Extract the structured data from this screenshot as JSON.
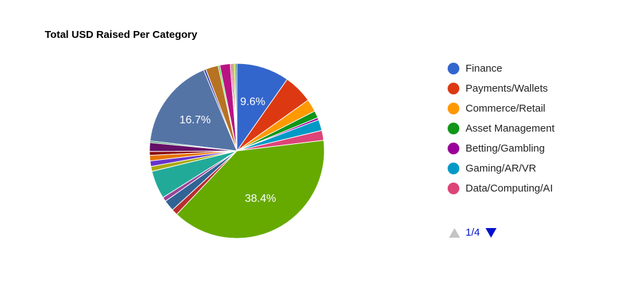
{
  "chart_data": {
    "type": "pie",
    "title": "Total USD Raised Per Category",
    "slices": [
      {
        "name": "Finance",
        "value": 9.6,
        "label": "9.6%",
        "color": "#3366cc"
      },
      {
        "name": "Payments/Wallets",
        "value": 5.3,
        "color": "#dc3912"
      },
      {
        "name": "Commerce/Retail",
        "value": 2.3,
        "color": "#ff9900"
      },
      {
        "name": "Asset Management",
        "value": 1.3,
        "color": "#109618"
      },
      {
        "name": "Betting/Gambling",
        "value": 0.4,
        "color": "#990099"
      },
      {
        "name": "Gaming/AR/VR",
        "value": 2.0,
        "color": "#0099c6"
      },
      {
        "name": "Data/Computing/AI",
        "value": 1.8,
        "color": "#dd4477"
      },
      {
        "name": "",
        "value": 38.4,
        "label": "38.4%",
        "color": "#66aa00"
      },
      {
        "name": "",
        "value": 1.1,
        "color": "#b82e2e"
      },
      {
        "name": "",
        "value": 2.0,
        "color": "#316395"
      },
      {
        "name": "",
        "value": 0.8,
        "color": "#994499"
      },
      {
        "name": "",
        "value": 5.1,
        "color": "#22aa99"
      },
      {
        "name": "",
        "value": 0.9,
        "color": "#aaaa11"
      },
      {
        "name": "",
        "value": 1.0,
        "color": "#6633cc"
      },
      {
        "name": "",
        "value": 1.0,
        "color": "#e67300"
      },
      {
        "name": "",
        "value": 0.7,
        "color": "#8b0707"
      },
      {
        "name": "",
        "value": 1.6,
        "color": "#651067"
      },
      {
        "name": "",
        "value": 0.3,
        "color": "#329262"
      },
      {
        "name": "",
        "value": 16.7,
        "label": "16.7%",
        "color": "#5574a6"
      },
      {
        "name": "",
        "value": 0.4,
        "color": "#3b3eac"
      },
      {
        "name": "",
        "value": 2.3,
        "color": "#b77322"
      },
      {
        "name": "",
        "value": 0.3,
        "color": "#16d620"
      },
      {
        "name": "",
        "value": 1.9,
        "color": "#b91383"
      },
      {
        "name": "",
        "value": 0.3,
        "color": "#f4359e"
      },
      {
        "name": "",
        "value": 0.3,
        "color": "#9c5935"
      },
      {
        "name": "",
        "value": 0.3,
        "color": "#a9c413"
      },
      {
        "name": "",
        "value": 0.3,
        "color": "#2a778d"
      }
    ],
    "legend": {
      "placement": "right",
      "items": [
        {
          "label": "Finance",
          "color": "#3366cc"
        },
        {
          "label": "Payments/Wallets",
          "color": "#dc3912"
        },
        {
          "label": "Commerce/Retail",
          "color": "#ff9900"
        },
        {
          "label": "Asset Management",
          "color": "#109618"
        },
        {
          "label": "Betting/Gambling",
          "color": "#990099"
        },
        {
          "label": "Gaming/AR/VR",
          "color": "#0099c6"
        },
        {
          "label": "Data/Computing/AI",
          "color": "#dd4477"
        }
      ]
    },
    "pager": {
      "text": "1/4"
    }
  }
}
